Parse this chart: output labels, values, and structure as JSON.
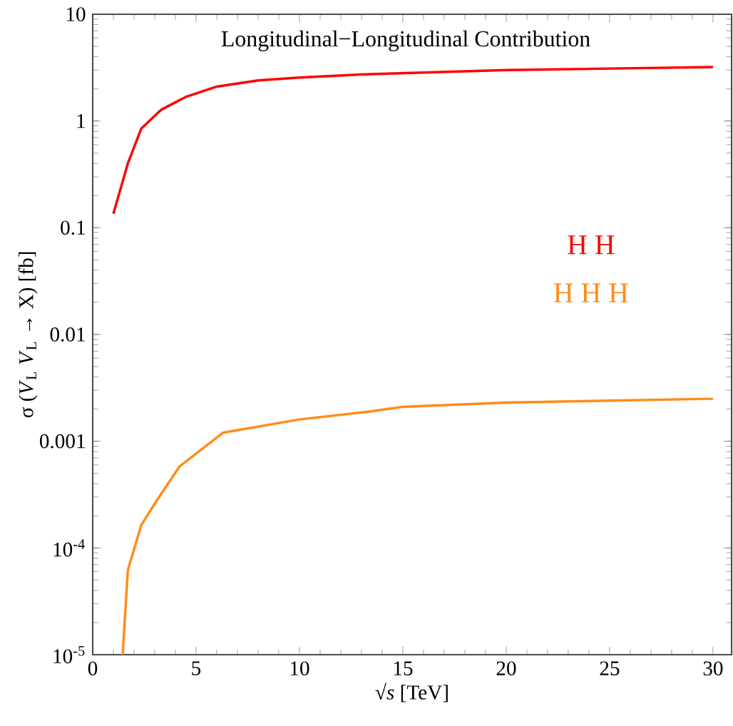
{
  "chart_data": {
    "type": "line",
    "title": "Longitudinal−Longitudinal Contribution",
    "xlabel": "√*s* [TeV]",
    "ylabel": "σ (*V*$_{L}$ *V*$_{L}$ → X) [fb]",
    "log": "y",
    "legend": "right",
    "line_style": "solid",
    "marker": "none",
    "xlim": [
      0,
      30.9
    ],
    "ylim": [
      1e-05,
      10
    ],
    "xticks": [
      0,
      5,
      10,
      15,
      20,
      25,
      30
    ],
    "yticks": [
      {
        "value": 1e-05,
        "label": "10$^{-5}$"
      },
      {
        "value": 0.0001,
        "label": "10$^{-4}$"
      },
      0.001,
      0.01,
      0.1,
      1,
      10
    ],
    "series": [
      {
        "name": "H H",
        "color": "#ff0000",
        "x": [
          1,
          1.7,
          2.35,
          3.3,
          4.5,
          6,
          8,
          10,
          13.4,
          20,
          25,
          30
        ],
        "values": [
          0.135,
          0.4,
          0.85,
          1.27,
          1.68,
          2.1,
          2.4,
          2.55,
          2.75,
          3.0,
          3.1,
          3.2
        ]
      },
      {
        "name": "H H H",
        "color": "#ff8c1a",
        "x": [
          1.45,
          1.7,
          2.35,
          3,
          4.2,
          6.3,
          10,
          13.4,
          15,
          20,
          25,
          30
        ],
        "values": [
          1e-05,
          6.2e-05,
          0.000164,
          0.00026,
          0.00058,
          0.0012,
          0.0016,
          0.0019,
          0.0021,
          0.0023,
          0.0024,
          0.0025
        ]
      }
    ]
  }
}
